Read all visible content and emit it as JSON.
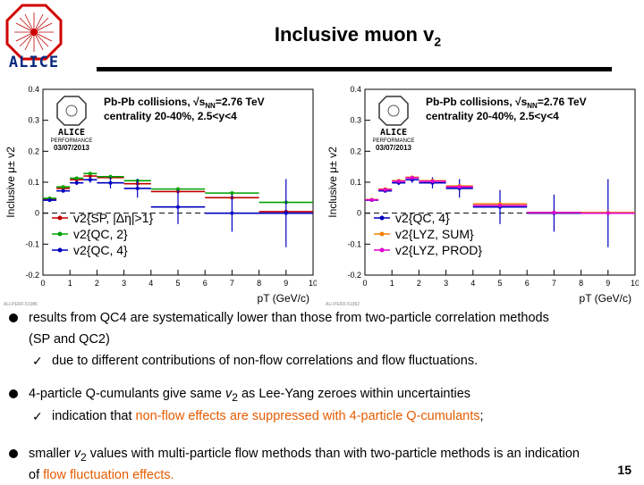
{
  "header": {
    "logo_text": "ALICE",
    "title_main": "Inclusive muon v",
    "title_sub": "2"
  },
  "plot_common": {
    "collision": "Pb-Pb collisions, √s",
    "collision_sub": "NN",
    "energy": "=2.76 TeV",
    "centrality": "centrality 20-40%, 2.5<y<4",
    "logo_text": "ALICE",
    "performance": "PERFORMANCE",
    "date": "03/07/2013",
    "xlabel": "pT (GeV/c)",
    "ylabel": "Inclusive μ± v2"
  },
  "chart_data": [
    {
      "type": "scatter",
      "name": "left-panel",
      "xlim": [
        0,
        10
      ],
      "ylim": [
        -0.2,
        0.4
      ],
      "x_ticks": [
        "0",
        "1",
        "2",
        "3",
        "4",
        "5",
        "6",
        "7",
        "8",
        "9",
        "10"
      ],
      "y_ticks": [
        "-0.2",
        "-0.1",
        "0",
        "0.1",
        "0.2",
        "0.3",
        "0.4"
      ],
      "legend": [
        "v2{SP, |Δη|>1}",
        "v2{QC, 2}",
        "v2{QC, 4}"
      ],
      "series": [
        {
          "name": "v2{SP, |Δη|>1}",
          "color": "#c00000",
          "x": [
            0.25,
            0.75,
            1.25,
            1.75,
            2.5,
            3.5,
            5.0,
            7.0,
            9.0
          ],
          "y": [
            0.045,
            0.08,
            0.108,
            0.12,
            0.115,
            0.095,
            0.07,
            0.05,
            0.005
          ]
        },
        {
          "name": "v2{QC, 2}",
          "color": "#00a000",
          "x": [
            0.25,
            0.75,
            1.25,
            1.75,
            2.5,
            3.5,
            5.0,
            7.0,
            9.0
          ],
          "y": [
            0.048,
            0.085,
            0.113,
            0.128,
            0.118,
            0.105,
            0.078,
            0.065,
            0.035
          ]
        },
        {
          "name": "v2{QC, 4}",
          "color": "#0000c0",
          "x": [
            0.25,
            0.75,
            1.25,
            1.75,
            2.5,
            3.5,
            5.0,
            7.0,
            9.0
          ],
          "y": [
            0.042,
            0.072,
            0.098,
            0.108,
            0.098,
            0.08,
            0.02,
            0.0,
            0.0
          ],
          "err": [
            0.003,
            0.005,
            0.007,
            0.01,
            0.018,
            0.03,
            0.055,
            0.06,
            0.11
          ]
        }
      ]
    },
    {
      "type": "scatter",
      "name": "right-panel",
      "xlim": [
        0,
        10
      ],
      "ylim": [
        -0.2,
        0.4
      ],
      "x_ticks": [
        "0",
        "1",
        "2",
        "3",
        "4",
        "5",
        "6",
        "7",
        "8",
        "9",
        "10"
      ],
      "y_ticks": [
        "-0.2",
        "-0.1",
        "0",
        "0.1",
        "0.2",
        "0.3",
        "0.4"
      ],
      "legend": [
        "v2{QC, 4}",
        "v2{LYZ, SUM}",
        "v2{LYZ, PROD}"
      ],
      "series": [
        {
          "name": "v2{QC, 4}",
          "color": "#0000c0",
          "x": [
            0.25,
            0.75,
            1.25,
            1.75,
            2.5,
            3.5,
            5.0,
            7.0,
            9.0
          ],
          "y": [
            0.042,
            0.072,
            0.098,
            0.108,
            0.098,
            0.08,
            0.02,
            0.0,
            0.0
          ],
          "err": [
            0.003,
            0.005,
            0.007,
            0.01,
            0.018,
            0.03,
            0.055,
            0.06,
            0.11
          ]
        },
        {
          "name": "v2{LYZ, SUM}",
          "color": "#f08000",
          "x": [
            0.25,
            0.75,
            1.25,
            1.75,
            2.5,
            3.5,
            5.0,
            7.0,
            9.0
          ],
          "y": [
            0.044,
            0.078,
            0.105,
            0.116,
            0.105,
            0.088,
            0.03,
            0.002,
            0.002
          ]
        },
        {
          "name": "v2{LYZ, PROD}",
          "color": "#e000d0",
          "x": [
            0.25,
            0.75,
            1.25,
            1.75,
            2.5,
            3.5,
            5.0,
            7.0,
            9.0
          ],
          "y": [
            0.043,
            0.076,
            0.103,
            0.114,
            0.103,
            0.085,
            0.025,
            0.002,
            0.0
          ]
        }
      ]
    }
  ],
  "plot_footnotes": [
    "ALI-PERF-51986",
    "ALI-PERF-51992"
  ],
  "bullets": [
    {
      "line1": "results from QC4 are systematically lower than those from two-particle correlation methods",
      "line2": "(SP and QC2)",
      "check": "due to different contributions of non-flow correlations and flow fluctuations."
    },
    {
      "pre": "4-particle Q-cumulants give same ",
      "v": "v",
      "sub": "2",
      "post": " as Lee-Yang zeroes within uncertainties",
      "check_pre": "indication that ",
      "check_orange": "non-flow effects are suppressed with 4-particle Q-cumulants",
      "check_post": ";"
    },
    {
      "pre": "smaller ",
      "v": "v",
      "sub": "2",
      "post": " values with multi-particle flow methods than with two-particle methods is an indication",
      "line2_pre": "of ",
      "line2_orange": "flow fluctuation effects."
    }
  ],
  "page_number": "15"
}
